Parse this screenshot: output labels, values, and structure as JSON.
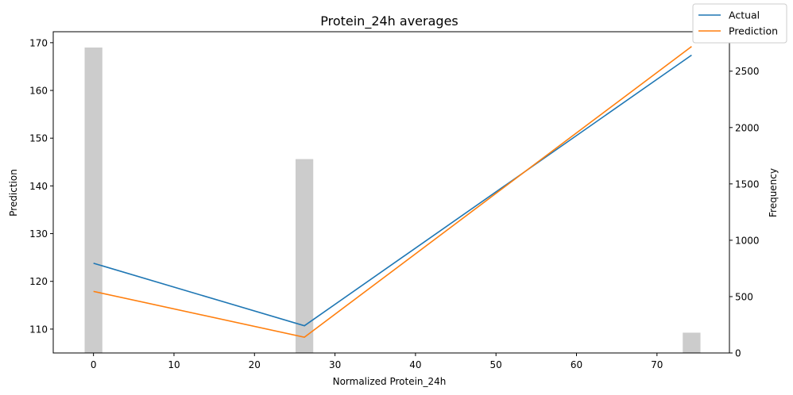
{
  "chart_data": {
    "type": "line",
    "title": "Protein_24h averages",
    "xlabel": "Normalized Protein_24h",
    "ylabel": "Prediction",
    "y2label": "Frequency",
    "xlim": [
      -5,
      79
    ],
    "ylim": [
      105,
      172.3
    ],
    "y2lim": [
      0,
      2850
    ],
    "x_ticks": [
      0,
      10,
      20,
      30,
      40,
      50,
      60,
      70
    ],
    "y_ticks": [
      110,
      120,
      130,
      140,
      150,
      160,
      170
    ],
    "y2_ticks": [
      0,
      500,
      1000,
      1500,
      2000,
      2500
    ],
    "grid": false,
    "legend_position": "top-right",
    "x": [
      0,
      26.2,
      74.3
    ],
    "series": [
      {
        "name": "Actual",
        "color": "#1f77b4",
        "values": [
          123.8,
          110.7,
          167.4
        ]
      },
      {
        "name": "Prediction",
        "color": "#ff7f0e",
        "values": [
          117.9,
          108.3,
          169.2
        ]
      }
    ],
    "histogram": {
      "color": "#cccccc",
      "axis": "y2",
      "bar_width": 2.2,
      "bins": [
        {
          "x": 0,
          "count": 2710
        },
        {
          "x": 26.2,
          "count": 1720
        },
        {
          "x": 74.3,
          "count": 180
        }
      ]
    }
  }
}
